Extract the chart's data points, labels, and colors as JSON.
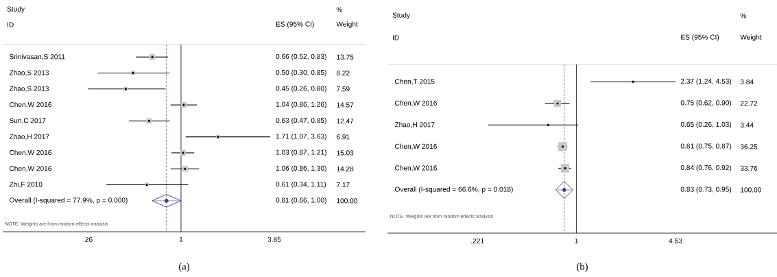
{
  "chart_data": [
    {
      "type": "scatter",
      "orientation": "horizontal",
      "categories": [
        "Srinivasan,S 2011",
        "Zhao,S 2013",
        "Zhao,S 2013",
        "Chen,W 2016",
        "Sun,C 2017",
        "Zhao,H 2017",
        "Chen,W 2016",
        "Chen,W 2016",
        "Zhi,F 2010",
        "Overall (I-squared = 77.9%, p = 0.000)"
      ],
      "log": "x",
      "xlim": [
        0.076,
        14.4
      ],
      "xticks": [
        {
          "value": 0.26,
          "label": ".26"
        },
        {
          "value": 1,
          "label": "1"
        },
        {
          "value": 3.85,
          "label": "3.85"
        }
      ],
      "grid": false,
      "series": [
        {
          "type": "scatter",
          "marker": "square",
          "color": "#000000",
          "values": [
            0.66,
            0.5,
            0.45,
            1.04,
            0.63,
            1.71,
            1.03,
            1.06,
            0.61,
            null
          ],
          "errors": [
            [
              0.52,
              0.83
            ],
            [
              0.3,
              0.85
            ],
            [
              0.26,
              0.8
            ],
            [
              0.86,
              1.26
            ],
            [
              0.47,
              0.85
            ],
            [
              1.07,
              3.63
            ],
            [
              0.87,
              1.21
            ],
            [
              0.86,
              1.3
            ],
            [
              0.34,
              1.11
            ],
            null
          ],
          "sizes": [
            0.915,
            0.547,
            0.505,
            0.969,
            0.83,
            0.46,
            1,
            0.95,
            0.477,
            null
          ]
        },
        {
          "type": "scatter",
          "marker": "diamond",
          "color": "#3c3c8c",
          "values": [
            null,
            null,
            null,
            null,
            null,
            null,
            null,
            null,
            null,
            0.81
          ],
          "errors": [
            null,
            null,
            null,
            null,
            null,
            null,
            null,
            null,
            null,
            [
              0.66,
              1.0
            ]
          ]
        }
      ],
      "ref_lines": [
        {
          "axis": "x",
          "value": 1,
          "color": "#000000",
          "line_style": "solid"
        },
        {
          "axis": "x",
          "value": 0.81,
          "color": "#a0505a",
          "line_style": "dashed"
        }
      ],
      "annotations": [
        "Study",
        "ID",
        "ES (95% CI)",
        "%",
        "Weight",
        "NOTE: Weights are from random effects analysis",
        "(a)",
        "0.66 (0.52, 0.83)",
        "0.50 (0.30, 0.85)",
        "0.45 (0.26, 0.80)",
        "1.04 (0.86, 1.26)",
        "0.63 (0.47, 0.85)",
        "1.71 (1.07, 3.63)",
        "1.03 (0.87, 1.21)",
        "1.06 (0.86, 1.30)",
        "0.61 (0.34, 1.11)",
        "0.81 (0.66, 1.00)",
        "13.75",
        "8.22",
        "7.59",
        "14.57",
        "12.47",
        "6.91",
        "15.03",
        "14.28",
        "7.17",
        "100.00"
      ]
    },
    {
      "type": "scatter",
      "orientation": "horizontal",
      "categories": [
        "Chen,T 2015",
        "Chen,W 2016",
        "Zhao,H 2017",
        "Chen,W 2016",
        "Chen,W 2016",
        "Overall (I-squared = 66.6%, p = 0.018)"
      ],
      "log": "x",
      "xlim": [
        0.056,
        21.3
      ],
      "xticks": [
        {
          "value": 0.221,
          "label": ".221"
        },
        {
          "value": 1,
          "label": "1"
        },
        {
          "value": 4.53,
          "label": "4.53"
        }
      ],
      "grid": false,
      "series": [
        {
          "type": "scatter",
          "marker": "square",
          "color": "#000000",
          "values": [
            2.37,
            0.75,
            0.65,
            0.81,
            0.84,
            null
          ],
          "errors": [
            [
              1.24,
              4.53
            ],
            [
              0.62,
              0.9
            ],
            [
              0.26,
              1.03
            ],
            [
              0.75,
              0.87
            ],
            [
              0.76,
              0.92
            ],
            null
          ],
          "sizes": [
            0.106,
            0.627,
            0.095,
            1,
            0.931,
            null
          ]
        },
        {
          "type": "scatter",
          "marker": "diamond",
          "color": "#3c3c8c",
          "values": [
            null,
            null,
            null,
            null,
            null,
            0.83
          ],
          "errors": [
            null,
            null,
            null,
            null,
            null,
            [
              0.73,
              0.95
            ]
          ]
        }
      ],
      "ref_lines": [
        {
          "axis": "x",
          "value": 1,
          "color": "#000000",
          "line_style": "solid"
        },
        {
          "axis": "x",
          "value": 0.83,
          "color": "#a0505a",
          "line_style": "dashed"
        }
      ],
      "annotations": [
        "Study",
        "ID",
        "ES (95% CI)",
        "%",
        "Weight",
        "NOTE: Weights are from random effects analysis",
        "(b)",
        "2.37 (1.24, 4.53)",
        "0.75 (0.62, 0.90)",
        "0.65 (0.26, 1.03)",
        "0.81 (0.75, 0.87)",
        "0.84 (0.76, 0.92)",
        "0.83 (0.73, 0.95)",
        "3.84",
        "22.72",
        "3.44",
        "36.25",
        "33.76",
        "100.00"
      ]
    }
  ]
}
